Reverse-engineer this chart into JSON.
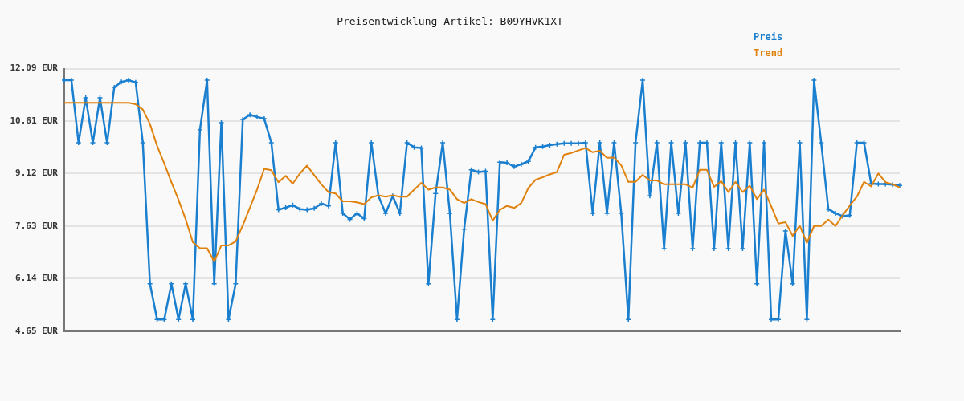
{
  "chart_data": {
    "type": "line",
    "title": "Preisentwicklung Artikel: B09YHVK1XT",
    "categories": [
      null,
      null,
      null,
      null,
      null,
      null,
      null,
      null,
      null,
      null,
      null,
      null,
      null,
      null,
      null,
      null,
      null,
      null,
      null,
      null,
      null,
      null,
      null,
      null,
      null,
      null,
      null,
      null,
      null,
      null,
      null,
      null,
      null,
      null,
      null,
      null,
      null,
      null,
      null,
      null,
      null,
      null,
      null,
      null,
      null,
      null,
      null,
      null,
      null,
      null,
      null,
      null,
      null,
      null,
      null,
      null,
      null,
      null,
      null,
      null,
      null,
      null,
      null,
      null,
      null,
      null,
      null,
      null,
      null,
      null,
      null,
      null,
      null,
      null,
      null,
      null,
      null,
      null,
      null,
      null,
      null,
      null,
      null,
      null,
      null,
      null,
      null,
      null,
      null,
      null,
      null,
      null,
      null,
      null,
      null,
      null,
      null,
      null,
      null,
      null,
      null,
      null,
      null,
      null,
      null,
      null,
      null,
      null,
      null,
      null,
      null,
      null,
      null,
      null,
      null,
      null,
      null,
      null
    ],
    "series": [
      {
        "name": "Preis",
        "color": "#1a7fcf",
        "marker": "cross",
        "values": [
          11.76,
          11.76,
          9.99,
          11.26,
          9.99,
          11.26,
          9.99,
          11.56,
          11.71,
          11.76,
          11.7,
          9.99,
          5.99,
          4.98,
          4.98,
          5.99,
          4.98,
          5.99,
          4.98,
          10.36,
          11.76,
          5.99,
          10.56,
          4.98,
          5.99,
          10.65,
          10.78,
          10.72,
          10.67,
          9.99,
          8.09,
          8.15,
          8.22,
          8.11,
          8.09,
          8.13,
          8.26,
          8.2,
          9.99,
          7.99,
          7.82,
          7.99,
          7.84,
          9.99,
          8.48,
          7.99,
          8.48,
          7.99,
          9.99,
          9.86,
          9.84,
          5.99,
          8.55,
          9.99,
          7.99,
          4.98,
          7.54,
          9.22,
          9.16,
          9.18,
          4.98,
          9.44,
          9.42,
          9.31,
          9.38,
          9.46,
          9.86,
          9.88,
          9.92,
          9.95,
          9.97,
          9.97,
          9.97,
          9.99,
          7.99,
          9.99,
          7.99,
          9.99,
          7.99,
          4.98,
          9.99,
          11.76,
          8.48,
          9.99,
          6.99,
          9.99,
          7.99,
          9.99,
          6.99,
          9.99,
          9.99,
          6.99,
          9.99,
          6.99,
          9.99,
          6.99,
          9.99,
          5.99,
          9.99,
          4.98,
          4.98,
          7.49,
          5.99,
          9.99,
          4.98,
          11.76,
          9.99,
          8.11,
          7.99,
          7.91,
          7.93,
          9.99,
          9.99,
          8.83,
          8.82,
          8.82,
          8.8,
          8.78
        ]
      },
      {
        "name": "Trend",
        "color": "#e0820e",
        "marker": "none",
        "values": [
          11.12,
          11.12,
          11.12,
          11.12,
          11.12,
          11.12,
          11.12,
          11.12,
          11.12,
          11.12,
          11.08,
          10.93,
          10.52,
          9.9,
          9.4,
          8.87,
          8.37,
          7.82,
          7.17,
          7.0,
          7.0,
          6.62,
          7.08,
          7.08,
          7.19,
          7.65,
          8.15,
          8.66,
          9.25,
          9.21,
          8.87,
          9.05,
          8.83,
          9.12,
          9.34,
          9.07,
          8.81,
          8.59,
          8.55,
          8.33,
          8.33,
          8.3,
          8.25,
          8.44,
          8.5,
          8.46,
          8.5,
          8.46,
          8.46,
          8.66,
          8.85,
          8.66,
          8.72,
          8.72,
          8.66,
          8.39,
          8.28,
          8.39,
          8.31,
          8.25,
          7.78,
          8.09,
          8.2,
          8.14,
          8.28,
          8.71,
          8.94,
          9.01,
          9.09,
          9.16,
          9.65,
          9.7,
          9.77,
          9.84,
          9.72,
          9.76,
          9.56,
          9.57,
          9.35,
          8.88,
          8.88,
          9.08,
          8.92,
          8.92,
          8.81,
          8.81,
          8.81,
          8.81,
          8.72,
          9.22,
          9.22,
          8.74,
          8.9,
          8.59,
          8.88,
          8.59,
          8.77,
          8.39,
          8.66,
          8.19,
          7.7,
          7.74,
          7.35,
          7.64,
          7.15,
          7.63,
          7.63,
          7.81,
          7.63,
          7.93,
          8.21,
          8.46,
          8.88,
          8.75,
          9.12,
          8.87,
          8.81,
          8.72
        ]
      }
    ],
    "ylim": [
      4.65,
      12.09
    ],
    "yticks": [
      {
        "value": 4.65,
        "label": "4.65 EUR"
      },
      {
        "value": 6.14,
        "label": "6.14 EUR"
      },
      {
        "value": 7.63,
        "label": "7.63 EUR"
      },
      {
        "value": 9.12,
        "label": "9.12 EUR"
      },
      {
        "value": 10.61,
        "label": "10.61 EUR"
      },
      {
        "value": 12.09,
        "label": "12.09 EUR"
      }
    ],
    "grid": "y",
    "legend": "top right",
    "line_style": "solid"
  }
}
